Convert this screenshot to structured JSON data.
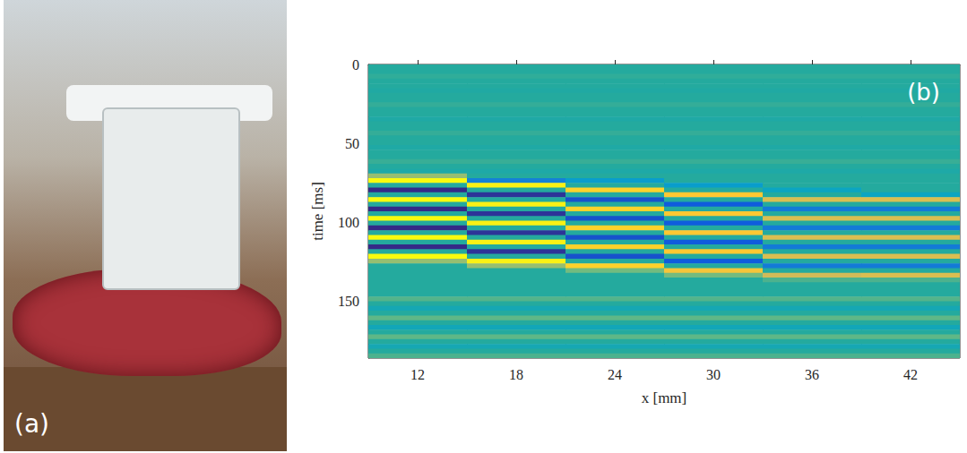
{
  "photo": {
    "panel_label": "(a)"
  },
  "chart_data": {
    "type": "heatmap",
    "panel_label": "(b)",
    "xlabel": "x [mm]",
    "ylabel": "time [ms]",
    "xlim": [
      9,
      45
    ],
    "xticks": [
      12,
      18,
      24,
      30,
      36,
      42
    ],
    "ylim": [
      0,
      186
    ],
    "yticks": [
      0,
      50,
      100,
      150
    ],
    "grid": false,
    "color_range": [
      -1,
      1
    ],
    "x_edges": [
      9,
      15,
      21,
      27,
      33,
      39,
      45
    ],
    "time_edges": [
      0,
      3,
      6,
      9,
      12,
      15,
      18,
      21,
      24,
      27,
      30,
      33,
      36,
      39,
      42,
      45,
      48,
      51,
      54,
      57,
      60,
      63,
      66,
      69,
      72,
      75,
      78,
      81,
      84,
      87,
      90,
      93,
      96,
      99,
      102,
      105,
      108,
      111,
      114,
      117,
      120,
      123,
      126,
      129,
      132,
      135,
      138,
      141,
      144,
      147,
      150,
      153,
      156,
      159,
      162,
      165,
      168,
      171,
      174,
      177,
      180,
      183,
      186
    ],
    "cells": [
      [
        0,
        0,
        0.03,
        0,
        0,
        -0.03,
        0,
        0,
        0.04,
        0,
        0,
        -0.04,
        0,
        0,
        0.04,
        0,
        0,
        -0.04,
        0,
        0,
        0.05,
        0,
        -0.05,
        0.3,
        1,
        0,
        -1,
        0,
        1,
        0,
        -1,
        0,
        1,
        0,
        -1,
        0,
        1,
        0,
        -1,
        0,
        1,
        0.3,
        0,
        0,
        0,
        0,
        0,
        0,
        0,
        0.12,
        0,
        -0.12,
        0,
        0.15,
        0,
        -0.15,
        0,
        0.15,
        0,
        -0.12,
        0,
        0.1
      ],
      [
        0,
        0,
        0.03,
        0,
        0,
        -0.03,
        0,
        0,
        0.04,
        0,
        0,
        -0.04,
        0,
        0,
        0.04,
        0,
        0,
        -0.04,
        0,
        0,
        0.05,
        0,
        -0.05,
        0,
        -0.5,
        0.95,
        0,
        -0.95,
        0,
        0.95,
        0,
        -0.95,
        0,
        0.95,
        0,
        -0.95,
        0,
        0.95,
        0,
        -0.95,
        0,
        0.95,
        0.3,
        0,
        0,
        0,
        0,
        0,
        0,
        0.12,
        0,
        -0.12,
        0,
        0.15,
        0,
        -0.15,
        0,
        0.15,
        0,
        -0.12,
        0,
        0.1
      ],
      [
        0,
        0,
        0.03,
        0,
        0,
        -0.03,
        0,
        0,
        0.04,
        0,
        0,
        -0.04,
        0,
        0,
        0.04,
        0,
        0,
        -0.04,
        0,
        0,
        0.05,
        0,
        -0.05,
        0,
        -0.3,
        0,
        0.8,
        0,
        -0.8,
        0,
        0.8,
        0,
        -0.8,
        0,
        0.8,
        0,
        -0.8,
        0,
        0.8,
        0,
        -0.8,
        0,
        0.8,
        0.2,
        0,
        0,
        0,
        0,
        0,
        0.12,
        0,
        -0.12,
        0,
        0.15,
        0,
        -0.15,
        0,
        0.15,
        0,
        -0.12,
        0,
        0.1
      ],
      [
        0,
        0,
        0.03,
        0,
        0,
        -0.03,
        0,
        0,
        0.04,
        0,
        0,
        -0.04,
        0,
        0,
        0.04,
        0,
        0,
        -0.04,
        0,
        0,
        0.05,
        0,
        -0.05,
        0,
        0,
        -0.3,
        0,
        0.75,
        0,
        -0.75,
        0,
        0.75,
        0,
        -0.75,
        0,
        0.75,
        0,
        -0.75,
        0,
        0.75,
        0,
        -0.75,
        0,
        0.7,
        0.2,
        0,
        0,
        0,
        0,
        0.12,
        0,
        -0.12,
        0,
        0.15,
        0,
        -0.15,
        0,
        0.15,
        0,
        -0.12,
        0,
        0.1
      ],
      [
        0,
        0,
        0.03,
        0,
        0,
        -0.03,
        0,
        0,
        0.04,
        0,
        0,
        -0.04,
        0,
        0,
        0.04,
        0,
        0,
        -0.04,
        0,
        0,
        0.05,
        0,
        -0.05,
        0,
        0,
        0,
        -0.2,
        0,
        0.55,
        0,
        -0.55,
        0,
        0.55,
        0,
        -0.55,
        0,
        0.55,
        0,
        -0.55,
        0,
        0.55,
        0,
        -0.55,
        0,
        0.5,
        0.1,
        0,
        0,
        0,
        0.12,
        0,
        -0.12,
        0,
        0.15,
        0,
        -0.15,
        0,
        0.15,
        0,
        -0.12,
        0,
        0.1
      ],
      [
        0,
        0,
        0.03,
        0,
        0,
        -0.03,
        0,
        0,
        0.04,
        0,
        0,
        -0.04,
        0,
        0,
        0.04,
        0,
        0,
        -0.04,
        0,
        0,
        0.05,
        0,
        -0.05,
        0,
        0,
        0,
        0,
        -0.2,
        0.55,
        0,
        -0.55,
        0,
        0.55,
        0,
        -0.55,
        0,
        0.55,
        0,
        -0.55,
        0,
        0.55,
        0,
        -0.55,
        0,
        0.55,
        0.1,
        0,
        0,
        0,
        0.12,
        0,
        -0.12,
        0,
        0.15,
        0,
        -0.15,
        0,
        0.15,
        0,
        -0.12,
        0,
        0.1
      ]
    ]
  }
}
